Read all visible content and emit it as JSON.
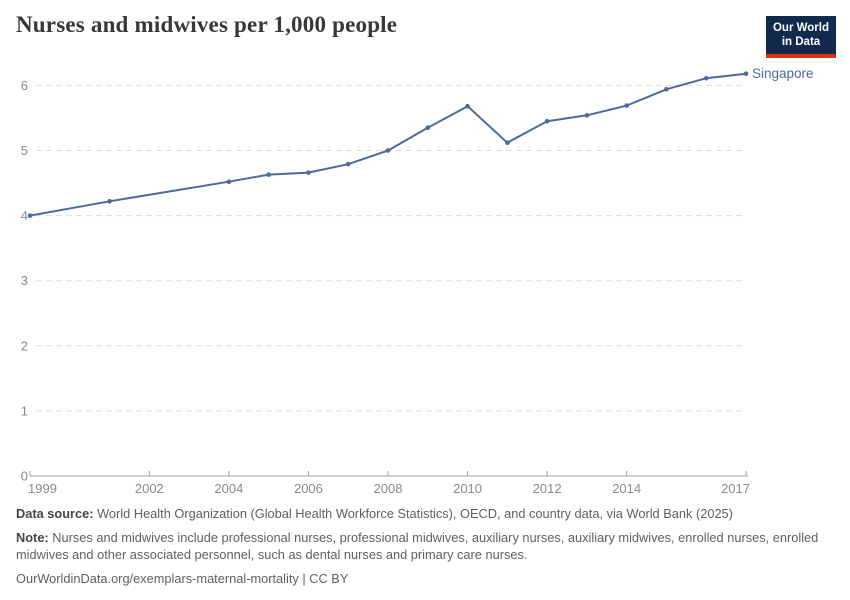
{
  "header": {
    "title": "Nurses and midwives per 1,000 people",
    "logo": {
      "line1": "Our World",
      "line2": "in Data"
    }
  },
  "chart_data": {
    "type": "line",
    "title": "Nurses and midwives per 1,000 people",
    "x": [
      1999,
      2001,
      2004,
      2005,
      2006,
      2007,
      2008,
      2009,
      2010,
      2011,
      2012,
      2013,
      2014,
      2015,
      2016,
      2017
    ],
    "series": [
      {
        "name": "Singapore",
        "values": [
          4.0,
          4.22,
          4.52,
          4.63,
          4.66,
          4.79,
          5.0,
          5.35,
          5.68,
          5.12,
          5.45,
          5.54,
          5.69,
          5.94,
          6.11,
          6.18
        ]
      }
    ],
    "end_label": "Singapore",
    "xlabel": "",
    "ylabel": "",
    "xlim": [
      1999,
      2017
    ],
    "ylim": [
      0,
      6.35
    ],
    "yticks": [
      0,
      1,
      2,
      3,
      4,
      5,
      6
    ],
    "xticks": [
      1999,
      2002,
      2004,
      2006,
      2008,
      2010,
      2012,
      2014,
      2017
    ],
    "grid": "horizontal-dashed",
    "legend_position": "end-of-line"
  },
  "colors": {
    "accent": "#4C6A9C",
    "logo_bg": "#12294e",
    "logo_red": "#dc3411",
    "grid": "#dddddd",
    "axis": "#a1a1a1",
    "tick_label": "#8a8a8a",
    "title": "#383838",
    "footer_text": "#606060"
  },
  "footer": {
    "source_label": "Data source:",
    "source_text": " World Health Organization (Global Health Workforce Statistics), OECD, and country data, via World Bank (2025)",
    "note_label": "Note:",
    "note_text": " Nurses and midwives include professional nurses, professional midwives, auxiliary nurses, auxiliary midwives, enrolled nurses, enrolled midwives and other associated personnel, such as dental nurses and primary care nurses.",
    "citation": "OurWorldinData.org/exemplars-maternal-mortality | CC BY"
  }
}
